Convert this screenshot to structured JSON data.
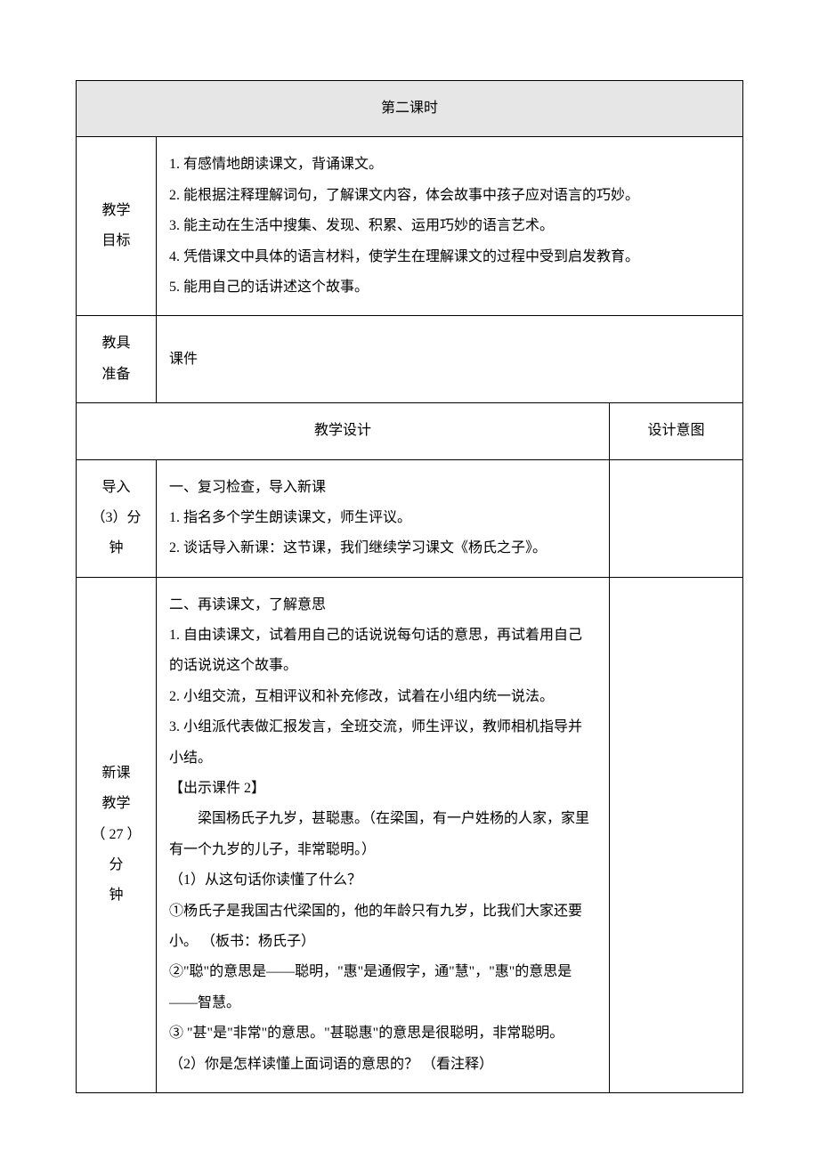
{
  "header": {
    "title": "第二课时"
  },
  "rows": {
    "goals": {
      "label": "教学\n目标",
      "items": [
        "1. 有感情地朗读课文，背诵课文。",
        "2. 能根据注释理解词句，了解课文内容，体会故事中孩子应对语言的巧妙。",
        "3. 能主动在生活中搜集、发现、积累、运用巧妙的语言艺术。",
        "4. 凭借课文中具体的语言材料，使学生在理解课文的过程中受到启发教育。",
        "5. 能用自己的话讲述这个故事。"
      ]
    },
    "tools": {
      "label": "教具\n准备",
      "value": "课件"
    },
    "design_header": {
      "left": "教学设计",
      "right": "设计意图"
    },
    "intro": {
      "label": "导入\n（3）分钟",
      "lines": [
        "一、复习检查，导入新课",
        "1. 指名多个学生朗读课文，师生评议。",
        "2. 谈话导入新课：这节课，我们继续学习课文《杨氏之子》。"
      ]
    },
    "main": {
      "label": "新课\n教学\n（ 27  ）分\n钟",
      "lines": [
        "二、再读课文，了解意思",
        "1. 自由读课文，试着用自己的话说说每句话的意思，再试着用自己的话说说这个故事。",
        "2. 小组交流，互相评议和补充修改，试着在小组内统一说法。",
        "3. 小组派代表做汇报发言，全班交流，师生评议，教师相机指导并小结。",
        "【出示课件  2】",
        "        梁国杨氏子九岁，甚聪惠。（在梁国，有一户姓杨的人家，家里有一个九岁的儿子，非常聪明。）",
        "（1）从这句话你读懂了什么？",
        "①杨氏子是我国古代梁国的，他的年龄只有九岁，比我们大家还要小。  （板书：杨氏子）",
        "②\"聪\"的意思是——聪明，\"惠\"是通假字，通\"慧\"，\"惠\"的意思是——智慧。",
        "③ \"甚\"是\"非常\"的意思。\"甚聪惠\"的意思是很聪明，非常聪明。",
        "（2）你是怎样读懂上面词语的意思的？  （看注释）"
      ]
    }
  },
  "colors": {
    "header_bg": "#e6e6e6",
    "border": "#000000",
    "text": "#000000",
    "page_bg": "#ffffff"
  },
  "typography": {
    "base_fontsize": 16,
    "line_height": 2.15,
    "font_family": "SimSun"
  }
}
